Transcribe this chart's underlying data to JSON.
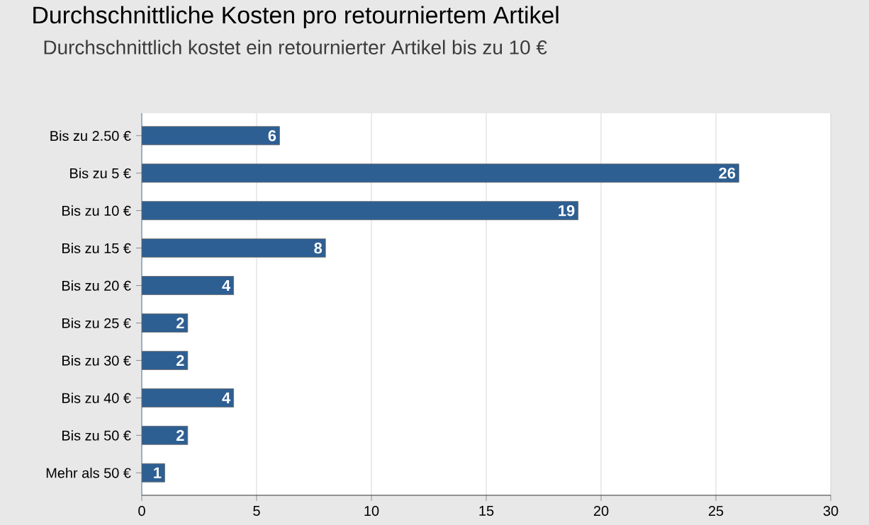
{
  "chart_data": {
    "type": "bar",
    "orientation": "horizontal",
    "title": "Durchschnittliche Kosten pro retourniertem Artikel",
    "subtitle": "Durchschnittlich kostet ein retournierter Artikel bis zu 10 €",
    "categories": [
      "Bis zu 2.50 €",
      "Bis zu 5 €",
      "Bis zu 10 €",
      "Bis zu 15 €",
      "Bis zu 20 €",
      "Bis zu 25 €",
      "Bis zu 30 €",
      "Bis zu 40 €",
      "Bis zu 50 €",
      "Mehr als 50 €"
    ],
    "values": [
      6,
      26,
      19,
      8,
      4,
      2,
      2,
      4,
      2,
      1
    ],
    "color": "#2e5f93",
    "xlim": [
      0,
      30
    ],
    "xticks": [
      0,
      5,
      10,
      15,
      20,
      25,
      30
    ],
    "grid": "x",
    "data_labels": true
  }
}
